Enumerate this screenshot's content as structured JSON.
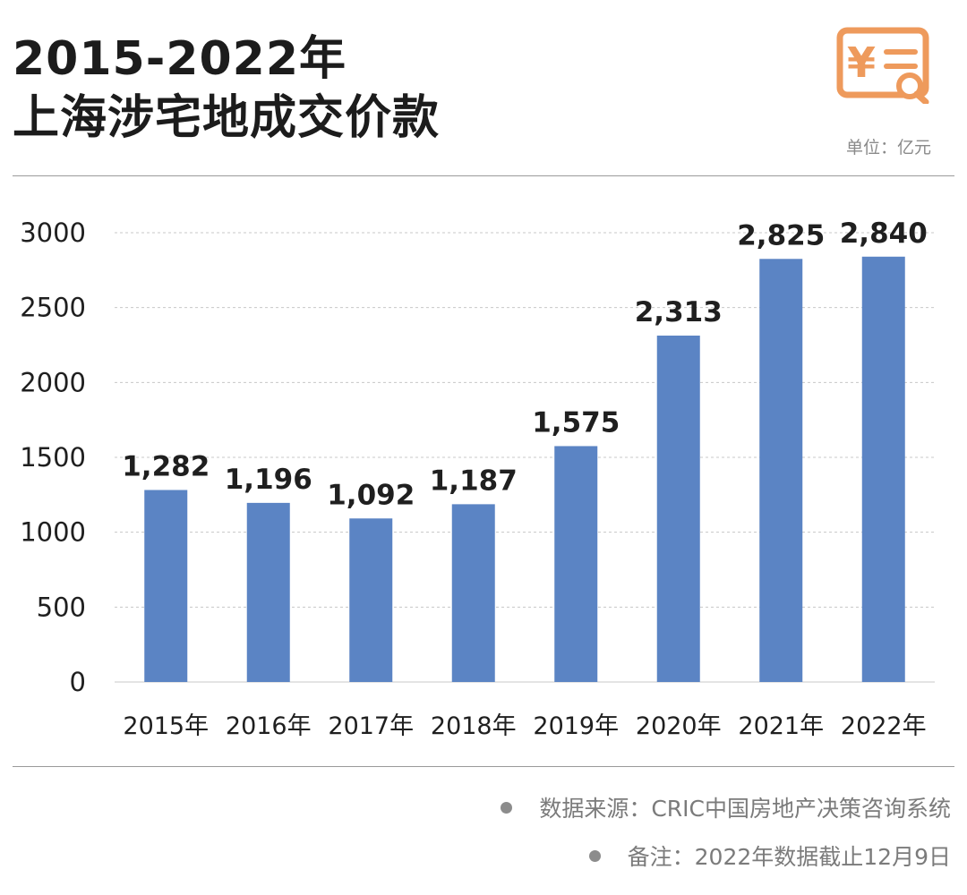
{
  "title_line1": "2015-2022年",
  "title_line2": "上海涉宅地成交价款",
  "unit": "单位：亿元",
  "logo": {
    "icon": "yen-receipt-search-icon",
    "symbol": "¥",
    "color": "#EE9A5C"
  },
  "footnotes": [
    "数据来源：CRIC中国房地产决策咨询系统",
    "备注：2022年数据截止12月9日"
  ],
  "colors": {
    "bar": "#5B84C4",
    "grid": "#c8c8c8",
    "text": "#1f1f1f"
  },
  "chart_data": {
    "type": "bar",
    "title": "2015-2022年 上海涉宅地成交价款",
    "categories": [
      "2015年",
      "2016年",
      "2017年",
      "2018年",
      "2019年",
      "2020年",
      "2021年",
      "2022年"
    ],
    "values": [
      1282,
      1196,
      1092,
      1187,
      1575,
      2313,
      2825,
      2840
    ],
    "data_labels": [
      "1,282",
      "1,196",
      "1,092",
      "1,187",
      "1,575",
      "2,313",
      "2,825",
      "2,840"
    ],
    "yticks": [
      0,
      500,
      1000,
      1500,
      2000,
      2500,
      3000
    ],
    "ylim": [
      0,
      3000
    ],
    "grid": true,
    "xlabel": "",
    "ylabel": ""
  }
}
